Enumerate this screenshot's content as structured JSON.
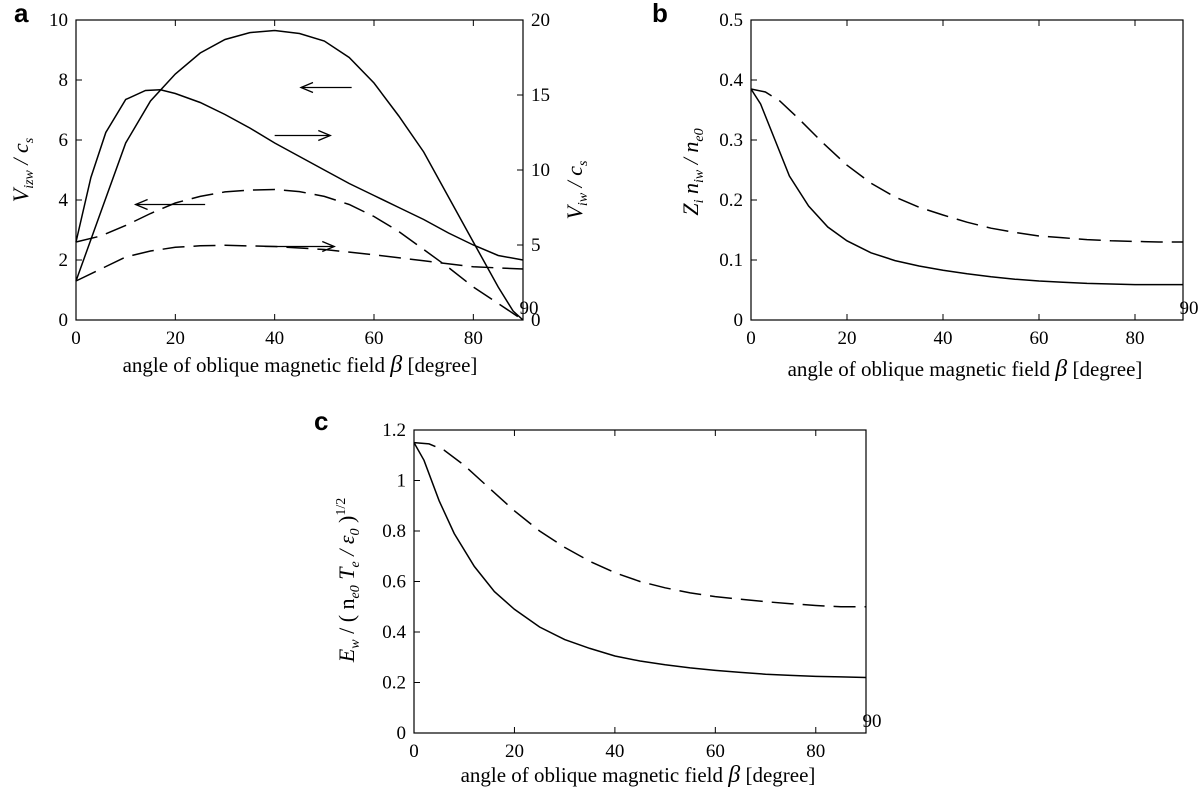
{
  "chart_data": [
    {
      "panel": "a",
      "type": "line",
      "xlabel": "angle of oblique magnetic field β [degree]",
      "ylabel_left": "V_izw / c_s",
      "ylabel_right": "V_iw / c_s",
      "xlim": [
        0,
        90
      ],
      "ylim_left": [
        0,
        10
      ],
      "ylim_right": [
        0,
        20
      ],
      "xticks": [
        0,
        20,
        40,
        60,
        80,
        90
      ],
      "yticks_left": [
        0,
        2,
        4,
        6,
        8,
        10
      ],
      "yticks_right": [
        0,
        5,
        10,
        15,
        20
      ],
      "series": [
        {
          "style": "solid",
          "axis": "left",
          "x": [
            0,
            5,
            10,
            15,
            20,
            25,
            30,
            35,
            40,
            45,
            50,
            55,
            60,
            65,
            70,
            75,
            80,
            85,
            88,
            90
          ],
          "y": [
            1.3,
            3.6,
            5.9,
            7.3,
            8.2,
            8.9,
            9.35,
            9.58,
            9.65,
            9.55,
            9.3,
            8.75,
            7.9,
            6.8,
            5.6,
            4.1,
            2.6,
            1.1,
            0.3,
            0.0
          ]
        },
        {
          "style": "solid",
          "axis": "right",
          "x": [
            0,
            3,
            6,
            10,
            14,
            17,
            20,
            25,
            30,
            35,
            40,
            45,
            50,
            55,
            60,
            65,
            70,
            75,
            80,
            85,
            90
          ],
          "y": [
            5.2,
            9.5,
            12.5,
            14.7,
            15.3,
            15.35,
            15.1,
            14.5,
            13.7,
            12.8,
            11.8,
            10.9,
            10.0,
            9.1,
            8.3,
            7.5,
            6.7,
            5.8,
            5.0,
            4.3,
            4.0
          ]
        },
        {
          "style": "dashed",
          "axis": "left",
          "x": [
            0,
            5,
            10,
            15,
            20,
            25,
            30,
            35,
            40,
            45,
            50,
            55,
            60,
            65,
            70,
            75,
            80,
            85,
            90
          ],
          "y": [
            2.6,
            2.8,
            3.15,
            3.55,
            3.9,
            4.12,
            4.27,
            4.33,
            4.35,
            4.28,
            4.12,
            3.85,
            3.45,
            2.95,
            2.35,
            1.75,
            1.1,
            0.55,
            0.0
          ]
        },
        {
          "style": "dashed",
          "axis": "right",
          "x": [
            0,
            5,
            10,
            15,
            20,
            25,
            30,
            40,
            50,
            60,
            70,
            80,
            90
          ],
          "y": [
            2.6,
            3.4,
            4.2,
            4.6,
            4.85,
            4.95,
            4.98,
            4.9,
            4.7,
            4.35,
            3.95,
            3.55,
            3.4
          ]
        }
      ],
      "arrows": [
        {
          "from_x": 55.5,
          "to_x": 45.3,
          "y_left": 7.75,
          "points_to": "left axis"
        },
        {
          "from_x": 40.0,
          "to_x": 51.2,
          "y_left": 6.15,
          "points_to": "right axis"
        },
        {
          "from_x": 26.0,
          "to_x": 12.0,
          "y_left": 3.85,
          "points_to": "left axis"
        },
        {
          "from_x": 38.0,
          "to_x": 52.0,
          "y_left": 2.45,
          "points_to": "right axis"
        }
      ]
    },
    {
      "panel": "b",
      "type": "line",
      "xlabel": "angle of oblique magnetic field β [degree]",
      "ylabel": "Z_i n_iw / n_e0",
      "xlim": [
        0,
        90
      ],
      "ylim": [
        0,
        0.5
      ],
      "xticks": [
        0,
        20,
        40,
        60,
        80,
        90
      ],
      "yticks": [
        0,
        0.1,
        0.2,
        0.3,
        0.4,
        0.5
      ],
      "series": [
        {
          "style": "solid",
          "x": [
            0,
            2,
            5,
            8,
            12,
            16,
            20,
            25,
            30,
            35,
            40,
            45,
            50,
            55,
            60,
            65,
            70,
            75,
            80,
            85,
            90
          ],
          "y": [
            0.385,
            0.36,
            0.3,
            0.24,
            0.19,
            0.155,
            0.132,
            0.112,
            0.099,
            0.09,
            0.083,
            0.077,
            0.072,
            0.068,
            0.065,
            0.063,
            0.061,
            0.06,
            0.059,
            0.059,
            0.059
          ]
        },
        {
          "style": "dashed",
          "x": [
            0,
            3,
            6,
            10,
            15,
            20,
            25,
            30,
            35,
            40,
            45,
            50,
            55,
            60,
            65,
            70,
            75,
            80,
            85,
            90
          ],
          "y": [
            0.385,
            0.38,
            0.365,
            0.335,
            0.295,
            0.258,
            0.228,
            0.205,
            0.188,
            0.175,
            0.163,
            0.153,
            0.146,
            0.14,
            0.137,
            0.134,
            0.132,
            0.131,
            0.13,
            0.13
          ]
        }
      ]
    },
    {
      "panel": "c",
      "type": "line",
      "xlabel": "angle of oblique magnetic field β [degree]",
      "ylabel": "E_w / ( n_e0 T_e / ε_0 )^1/2",
      "xlim": [
        0,
        90
      ],
      "ylim": [
        0,
        1.2
      ],
      "xticks": [
        0,
        20,
        40,
        60,
        80,
        90
      ],
      "yticks": [
        0,
        0.2,
        0.4,
        0.6,
        0.8,
        1.0,
        1.2
      ],
      "series": [
        {
          "style": "solid",
          "x": [
            0,
            2,
            5,
            8,
            12,
            16,
            20,
            25,
            30,
            35,
            40,
            45,
            50,
            55,
            60,
            65,
            70,
            75,
            80,
            85,
            90
          ],
          "y": [
            1.15,
            1.08,
            0.92,
            0.79,
            0.66,
            0.56,
            0.49,
            0.42,
            0.37,
            0.335,
            0.305,
            0.285,
            0.27,
            0.258,
            0.248,
            0.24,
            0.233,
            0.228,
            0.224,
            0.222,
            0.22
          ]
        },
        {
          "style": "dashed",
          "x": [
            0,
            3,
            6,
            10,
            15,
            20,
            25,
            30,
            35,
            40,
            45,
            50,
            55,
            60,
            65,
            70,
            75,
            80,
            85,
            90
          ],
          "y": [
            1.15,
            1.145,
            1.12,
            1.06,
            0.97,
            0.88,
            0.8,
            0.735,
            0.68,
            0.635,
            0.6,
            0.575,
            0.555,
            0.54,
            0.53,
            0.52,
            0.512,
            0.505,
            0.5,
            0.5
          ]
        }
      ]
    }
  ],
  "figure_text": {
    "panel_a_letter": "a",
    "panel_b_letter": "b",
    "panel_c_letter": "c",
    "panel_a_xlabel_text": "angle of oblique magnetic field ",
    "panel_b_xlabel_text": "angle of oblique magnetic field ",
    "panel_c_xlabel_text": "angle of oblique magnetic field ",
    "beta": "β",
    "xlabel_unit": " [degree]",
    "a_ylabel_left_main": "V",
    "a_ylabel_left_sub": "izw",
    "a_ylabel_left_rest": " / c",
    "a_ylabel_left_sub2": "s",
    "a_ylabel_right_main": "V",
    "a_ylabel_right_sub": "iw",
    "a_ylabel_right_rest": " / c",
    "a_ylabel_right_sub2": "s",
    "b_ylabel_z": "Z",
    "b_ylabel_z_sub": "i",
    "b_ylabel_n": " n",
    "b_ylabel_n_sub": "iw",
    "b_ylabel_rest": " / n",
    "b_ylabel_rest_sub": "e0",
    "c_ylabel_e": "E",
    "c_ylabel_e_sub": "w",
    "c_ylabel_open": " / ( n",
    "c_ylabel_n_sub": "e0",
    "c_ylabel_t": " T",
    "c_ylabel_t_sub": "e",
    "c_ylabel_eps": " / ε",
    "c_ylabel_eps_sub": "0",
    "c_ylabel_close": " )",
    "c_ylabel_exp": "1/2"
  }
}
